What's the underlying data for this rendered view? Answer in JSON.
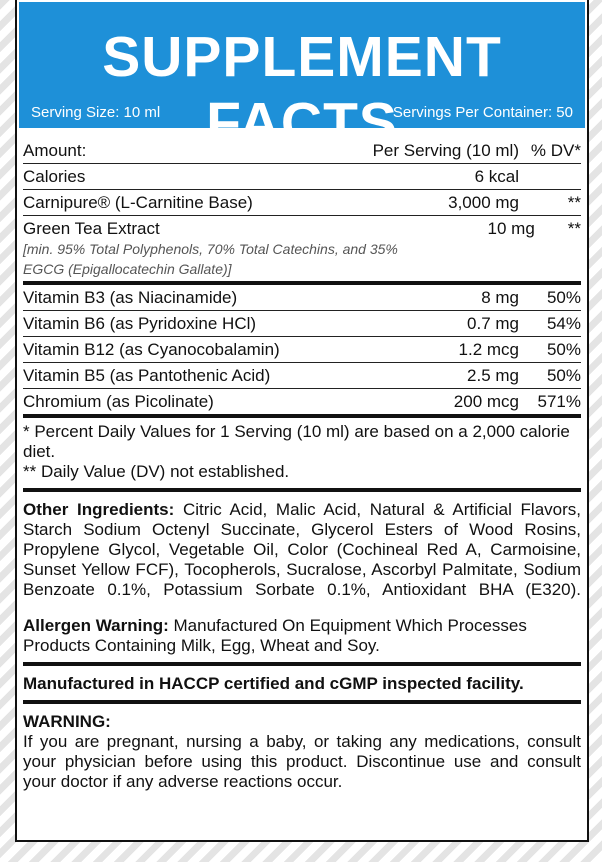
{
  "header": {
    "title": "SUPPLEMENT FACTS",
    "serving_size": "Serving Size: 10 ml",
    "servings_per_container": "Servings Per Container: 50"
  },
  "table": {
    "columns": [
      "Amount:",
      "Per Serving (10 ml)",
      "% DV*"
    ],
    "rows": [
      {
        "name": "Calories",
        "amount": "6 kcal"
      },
      {
        "name": "Carnipure® (L-Carnitine Base)",
        "amount": "3,000 mg",
        "dv": "**"
      },
      {
        "name": "Green Tea Extract",
        "amount": "10 mg",
        "dv": "**",
        "note": "[min. 95% Total Polyphenols, 70% Total Catechins, and 35% EGCG (Epigallocatechin Gallate)]"
      },
      {
        "name": "Vitamin B3 (as Niacinamide)",
        "amount": "8 mg",
        "dv": "50%"
      },
      {
        "name": "Vitamin B6 (as Pyridoxine HCl)",
        "amount": "0.7 mg",
        "dv": "54%"
      },
      {
        "name": "Vitamin B12 (as Cyanocobalamin)",
        "amount": "1.2 mcg",
        "dv": "50%"
      },
      {
        "name": "Vitamin B5 (as Pantothenic Acid)",
        "amount": "2.5 mg",
        "dv": "50%"
      },
      {
        "name": "Chromium (as Picolinate)",
        "amount": "200 mcg",
        "dv": "571%"
      }
    ],
    "footnotes": [
      "* Percent Daily Values for 1 Serving (10 ml) are based on a 2,000 calorie diet.",
      "** Daily Value (DV) not established."
    ]
  },
  "other_ingredients": {
    "label": "Other Ingredients:",
    "text": "Citric Acid, Malic Acid, Natural & Artificial Flavors, Starch Sodium Octenyl Succinate, Glycerol Esters of Wood Rosins, Propylene Glycol, Vegetable Oil, Color (Cochineal Red A, Carmoisine, Sunset Yellow FCF), Tocopherols, Sucralose, Ascorbyl Palmitate, Sodium Benzoate 0.1%, Potassium Sorbate 0.1%, Antioxidant BHA (E320)."
  },
  "allergen": {
    "label": "Allergen Warning:",
    "text": "Manufactured On Equipment Which Processes Products Containing Milk, Egg, Wheat and Soy."
  },
  "manufactured": "Manufactured in HACCP certified and cGMP inspected facility.",
  "warning": {
    "label": "WARNING:",
    "text": "If you are pregnant, nursing a baby, or taking any medications, consult your physician before using this product. Discontinue use and consult your doctor if any adverse reactions occur."
  }
}
